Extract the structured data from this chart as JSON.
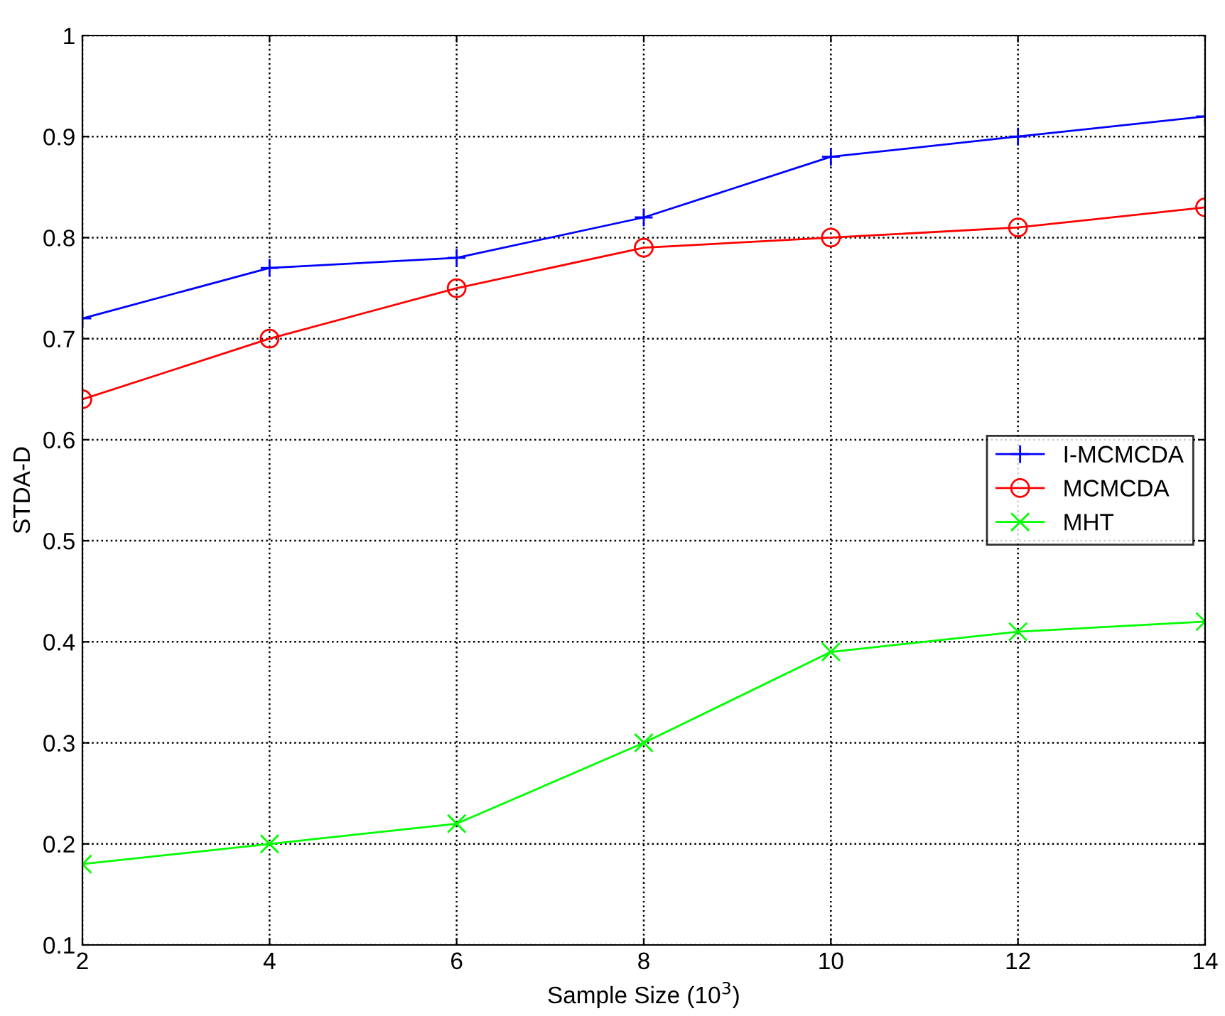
{
  "chart_data": {
    "type": "line",
    "xlabel": "Sample Size (10$^{3}$)",
    "ylabel": "STDA-D",
    "x": [
      2,
      4,
      6,
      8,
      10,
      12,
      14
    ],
    "series": [
      {
        "name": "I-MCMCDA",
        "color": "#0000ff",
        "marker": "plus",
        "values": [
          0.72,
          0.77,
          0.78,
          0.82,
          0.88,
          0.9,
          0.92
        ]
      },
      {
        "name": "MCMCDA",
        "color": "#ff0000",
        "marker": "circle",
        "values": [
          0.64,
          0.7,
          0.75,
          0.79,
          0.8,
          0.81,
          0.83
        ]
      },
      {
        "name": "MHT",
        "color": "#00ff00",
        "marker": "cross",
        "values": [
          0.18,
          0.2,
          0.22,
          0.3,
          0.39,
          0.41,
          0.42
        ]
      }
    ],
    "xlim": [
      2,
      14
    ],
    "xticks": [
      2,
      4,
      6,
      8,
      10,
      12,
      14
    ],
    "ylim": [
      0.1,
      1
    ],
    "yticks": [
      0.1,
      0.2,
      0.3,
      0.4,
      0.5,
      0.6,
      0.7,
      0.8,
      0.9,
      1
    ],
    "grid": true,
    "legend": "center right",
    "line_style": "solid"
  }
}
